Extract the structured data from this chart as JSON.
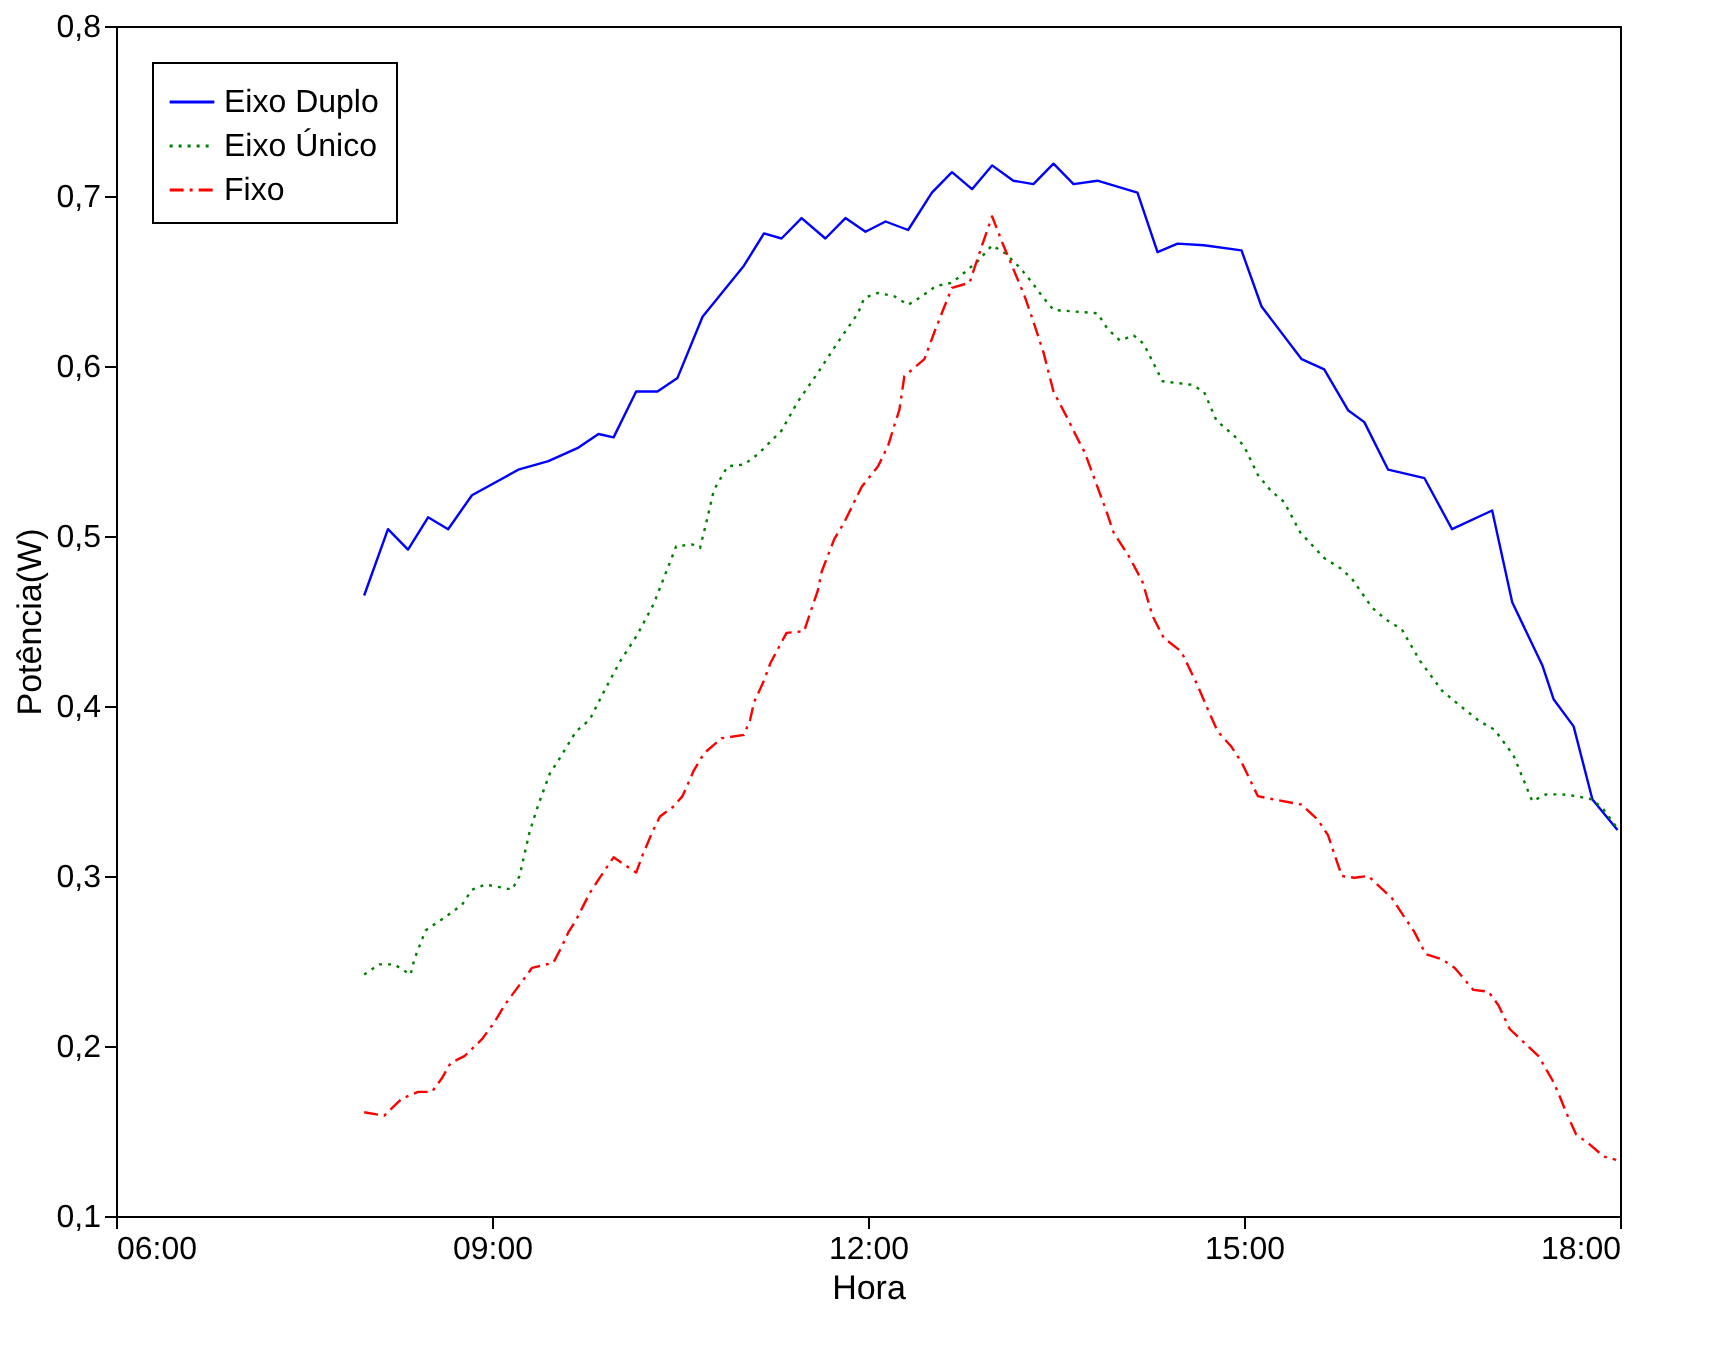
{
  "chart_data": {
    "type": "line",
    "xlabel": "Hora",
    "ylabel": "Potência(W)",
    "xlim": [
      6,
      18
    ],
    "xticks": [
      {
        "value": 6,
        "label": "06:00"
      },
      {
        "value": 9,
        "label": "09:00"
      },
      {
        "value": 12,
        "label": "12:00"
      },
      {
        "value": 15,
        "label": "15:00"
      },
      {
        "value": 18,
        "label": "18:00"
      }
    ],
    "ylim": [
      0.1,
      0.8
    ],
    "yticks": [
      {
        "value": 0.1,
        "label": "0,1"
      },
      {
        "value": 0.2,
        "label": "0,2"
      },
      {
        "value": 0.3,
        "label": "0,3"
      },
      {
        "value": 0.4,
        "label": "0,4"
      },
      {
        "value": 0.5,
        "label": "0,5"
      },
      {
        "value": 0.6,
        "label": "0,6"
      },
      {
        "value": 0.7,
        "label": "0,7"
      },
      {
        "value": 0.8,
        "label": "0,8"
      }
    ],
    "grid": false,
    "legend": "top left",
    "marker": "none",
    "series": [
      {
        "name": "Eixo Duplo",
        "color": "#0000ff",
        "line_style": "solid",
        "x": [
          7.98,
          8.17,
          8.33,
          8.49,
          8.65,
          8.84,
          9.21,
          9.45,
          9.69,
          9.85,
          9.97,
          10.15,
          10.32,
          10.48,
          10.68,
          11.01,
          11.17,
          11.31,
          11.47,
          11.66,
          11.82,
          11.98,
          12.14,
          12.32,
          12.51,
          12.67,
          12.83,
          12.99,
          13.16,
          13.32,
          13.48,
          13.64,
          13.83,
          14.15,
          14.31,
          14.47,
          14.68,
          14.98,
          15.14,
          15.46,
          15.64,
          15.83,
          15.96,
          16.15,
          16.44,
          16.66,
          16.98,
          17.14,
          17.38,
          17.47,
          17.63,
          17.78,
          17.98
        ],
        "values": [
          0.465,
          0.504,
          0.492,
          0.511,
          0.504,
          0.524,
          0.539,
          0.544,
          0.552,
          0.56,
          0.558,
          0.585,
          0.585,
          0.593,
          0.629,
          0.659,
          0.678,
          0.675,
          0.687,
          0.675,
          0.687,
          0.679,
          0.685,
          0.68,
          0.702,
          0.714,
          0.704,
          0.718,
          0.709,
          0.707,
          0.719,
          0.707,
          0.709,
          0.702,
          0.667,
          0.672,
          0.671,
          0.668,
          0.635,
          0.604,
          0.598,
          0.574,
          0.567,
          0.539,
          0.534,
          0.504,
          0.515,
          0.461,
          0.424,
          0.404,
          0.388,
          0.345,
          0.327
        ]
      },
      {
        "name": "Eixo Único",
        "color": "#008000",
        "line_style": "dotted",
        "x": [
          7.98,
          8.1,
          8.22,
          8.35,
          8.38,
          8.47,
          8.63,
          8.76,
          8.84,
          8.95,
          9.16,
          9.22,
          9.3,
          9.37,
          9.46,
          9.53,
          9.67,
          9.78,
          9.89,
          10.02,
          10.16,
          10.29,
          10.47,
          10.6,
          10.66,
          10.72,
          10.77,
          10.88,
          11.01,
          11.12,
          11.31,
          11.44,
          11.6,
          11.76,
          11.92,
          11.97,
          12.08,
          12.21,
          12.32,
          12.43,
          12.54,
          12.67,
          12.77,
          12.88,
          12.99,
          13.1,
          13.21,
          13.31,
          13.39,
          13.48,
          13.83,
          13.91,
          14.01,
          14.12,
          14.2,
          14.35,
          14.58,
          14.68,
          14.78,
          14.92,
          15.0,
          15.11,
          15.21,
          15.32,
          15.45,
          15.64,
          15.77,
          15.86,
          16.02,
          16.13,
          16.26,
          16.4,
          16.58,
          16.71,
          16.88,
          17.0,
          17.15,
          17.25,
          17.3,
          17.41,
          17.54,
          17.65,
          17.78,
          17.87,
          17.98
        ],
        "values": [
          0.242,
          0.248,
          0.248,
          0.242,
          0.251,
          0.268,
          0.276,
          0.283,
          0.292,
          0.295,
          0.292,
          0.3,
          0.326,
          0.342,
          0.36,
          0.368,
          0.385,
          0.392,
          0.408,
          0.426,
          0.442,
          0.46,
          0.494,
          0.495,
          0.493,
          0.511,
          0.527,
          0.541,
          0.542,
          0.548,
          0.562,
          0.579,
          0.596,
          0.614,
          0.631,
          0.64,
          0.643,
          0.641,
          0.636,
          0.641,
          0.647,
          0.649,
          0.655,
          0.662,
          0.671,
          0.666,
          0.658,
          0.649,
          0.641,
          0.633,
          0.631,
          0.622,
          0.615,
          0.618,
          0.613,
          0.591,
          0.589,
          0.585,
          0.568,
          0.559,
          0.553,
          0.536,
          0.527,
          0.52,
          0.502,
          0.487,
          0.481,
          0.475,
          0.458,
          0.451,
          0.445,
          0.427,
          0.409,
          0.401,
          0.391,
          0.386,
          0.371,
          0.353,
          0.344,
          0.348,
          0.348,
          0.347,
          0.345,
          0.339,
          0.328
        ]
      },
      {
        "name": "Fixo",
        "color": "#ff0000",
        "line_style": "dashed",
        "x": [
          7.98,
          8.14,
          8.28,
          8.41,
          8.52,
          8.6,
          8.67,
          8.78,
          8.92,
          9.02,
          9.1,
          9.24,
          9.32,
          9.49,
          9.56,
          9.61,
          9.67,
          9.78,
          9.86,
          9.97,
          10.15,
          10.2,
          10.28,
          10.34,
          10.45,
          10.52,
          10.61,
          10.69,
          10.83,
          11.01,
          11.06,
          11.09,
          11.17,
          11.22,
          11.27,
          11.35,
          11.49,
          11.54,
          11.6,
          11.63,
          11.73,
          11.81,
          11.95,
          12.08,
          12.16,
          12.21,
          12.25,
          12.29,
          12.45,
          12.53,
          12.61,
          12.67,
          12.81,
          12.91,
          12.99,
          13.08,
          13.16,
          13.25,
          13.32,
          13.4,
          13.48,
          13.6,
          13.66,
          13.73,
          13.8,
          13.9,
          13.96,
          14.09,
          14.19,
          14.27,
          14.36,
          14.5,
          14.63,
          14.7,
          14.79,
          14.9,
          14.98,
          15.11,
          15.24,
          15.46,
          15.59,
          15.67,
          15.78,
          15.88,
          15.99,
          16.18,
          16.26,
          16.36,
          16.45,
          16.58,
          16.68,
          16.83,
          16.95,
          17.03,
          17.12,
          17.22,
          17.35,
          17.46,
          17.51,
          17.57,
          17.65,
          17.76,
          17.87,
          17.97
        ],
        "values": [
          0.161,
          0.159,
          0.169,
          0.173,
          0.173,
          0.181,
          0.19,
          0.194,
          0.204,
          0.214,
          0.224,
          0.238,
          0.246,
          0.249,
          0.259,
          0.267,
          0.274,
          0.29,
          0.299,
          0.311,
          0.302,
          0.312,
          0.326,
          0.335,
          0.341,
          0.347,
          0.362,
          0.372,
          0.381,
          0.383,
          0.392,
          0.402,
          0.415,
          0.425,
          0.432,
          0.443,
          0.444,
          0.455,
          0.468,
          0.479,
          0.498,
          0.508,
          0.529,
          0.541,
          0.553,
          0.565,
          0.574,
          0.594,
          0.604,
          0.62,
          0.635,
          0.646,
          0.649,
          0.671,
          0.688,
          0.671,
          0.657,
          0.641,
          0.626,
          0.608,
          0.585,
          0.568,
          0.559,
          0.549,
          0.535,
          0.515,
          0.502,
          0.487,
          0.473,
          0.453,
          0.44,
          0.432,
          0.412,
          0.4,
          0.385,
          0.376,
          0.367,
          0.347,
          0.345,
          0.342,
          0.333,
          0.324,
          0.3,
          0.299,
          0.3,
          0.287,
          0.278,
          0.267,
          0.254,
          0.251,
          0.246,
          0.233,
          0.232,
          0.224,
          0.21,
          0.203,
          0.194,
          0.18,
          0.172,
          0.161,
          0.148,
          0.142,
          0.135,
          0.133
        ]
      }
    ]
  }
}
